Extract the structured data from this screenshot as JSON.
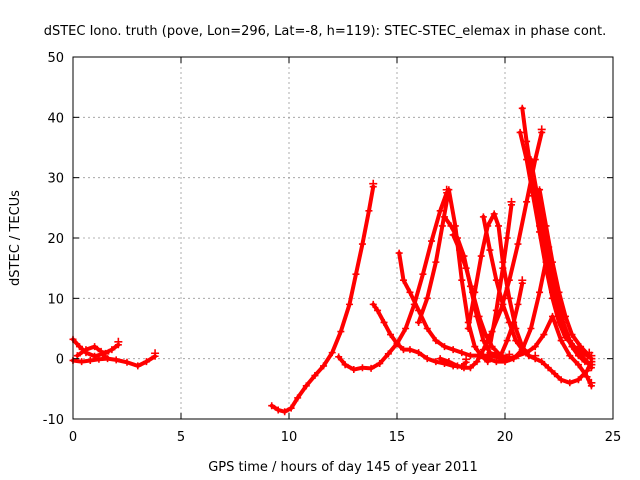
{
  "chart_data": {
    "type": "scatter",
    "title": "dSTEC Iono. truth (pove, Lon=296, Lat=-8, h=119): STEC-STEC_elemax in phase cont.",
    "xlabel": "GPS time / hours of day 145 of year 2011",
    "ylabel": "dSTEC  / TECUs",
    "xlim": [
      0,
      25
    ],
    "ylim": [
      -10,
      50
    ],
    "xticks": [
      0,
      5,
      10,
      15,
      20,
      25
    ],
    "yticks": [
      -10,
      0,
      10,
      20,
      30,
      40,
      50
    ],
    "grid": true,
    "marker": "plus",
    "color": "#ff0000",
    "series": [
      {
        "x": [
          0.0,
          0.3,
          0.6,
          1.0,
          1.4,
          1.8,
          2.1
        ],
        "y": [
          3.2,
          2.0,
          1.0,
          0.4,
          0.8,
          1.5,
          2.3
        ]
      },
      {
        "x": [
          0.0,
          0.4,
          0.8,
          1.2,
          1.6,
          2.0,
          2.5,
          3.0,
          3.4,
          3.8
        ],
        "y": [
          -0.3,
          -0.5,
          -0.3,
          -0.1,
          0.0,
          -0.2,
          -0.6,
          -1.2,
          -0.5,
          0.4
        ]
      },
      {
        "x": [
          0.2,
          0.6,
          1.0,
          1.3,
          1.5
        ],
        "y": [
          0.5,
          1.5,
          2.0,
          1.2,
          0.3
        ]
      },
      {
        "x": [
          9.2,
          9.5,
          9.8,
          10.1,
          10.4,
          10.8,
          11.2,
          11.6,
          12.0,
          12.4,
          12.8,
          13.1,
          13.4,
          13.7,
          13.9
        ],
        "y": [
          -7.8,
          -8.5,
          -8.8,
          -8.2,
          -6.5,
          -4.5,
          -2.8,
          -1.2,
          1.0,
          4.5,
          9.0,
          14.0,
          19.0,
          24.5,
          28.5
        ]
      },
      {
        "x": [
          12.3,
          12.6,
          13.0,
          13.4,
          13.8,
          14.2,
          14.6,
          15.0,
          15.4,
          15.8,
          16.2,
          16.6,
          17.0,
          17.3
        ],
        "y": [
          0.3,
          -1.0,
          -1.8,
          -1.5,
          -1.6,
          -0.8,
          0.8,
          2.5,
          5.0,
          9.0,
          14.0,
          19.5,
          24.5,
          27.5
        ]
      },
      {
        "x": [
          13.9,
          14.1,
          14.4,
          14.7,
          15.0,
          15.3,
          15.6,
          16.0,
          16.4,
          16.8,
          17.2,
          17.6,
          18.0,
          18.2
        ],
        "y": [
          9.0,
          8.0,
          6.0,
          4.0,
          2.5,
          1.5,
          1.5,
          1.0,
          0.0,
          -0.5,
          -0.8,
          -1.2,
          -1.3,
          -0.6
        ]
      },
      {
        "x": [
          15.1,
          15.3,
          15.6,
          16.0,
          16.4,
          16.8,
          17.2,
          17.6,
          18.0,
          18.4,
          18.8,
          19.2
        ],
        "y": [
          17.5,
          13.0,
          11.0,
          8.0,
          5.0,
          3.0,
          2.0,
          1.5,
          1.0,
          0.5,
          0.5,
          0.0
        ]
      },
      {
        "x": [
          16.0,
          16.4,
          16.8,
          17.1,
          17.4,
          17.7,
          18.0,
          18.3,
          18.6,
          18.9,
          19.2
        ],
        "y": [
          6.0,
          10.0,
          16.0,
          22.0,
          28.0,
          22.0,
          13.0,
          6.0,
          2.0,
          0.5,
          -0.5
        ]
      },
      {
        "x": [
          17.2,
          17.5,
          17.8,
          18.1,
          18.4,
          18.7,
          19.0,
          19.3,
          19.6
        ],
        "y": [
          23.5,
          22.0,
          20.0,
          17.0,
          12.0,
          7.0,
          3.0,
          1.0,
          0.5
        ]
      },
      {
        "x": [
          17.6,
          17.9,
          18.2,
          18.5,
          18.8,
          19.1,
          19.4,
          19.8,
          20.2
        ],
        "y": [
          20.5,
          18.0,
          15.0,
          11.0,
          7.0,
          4.0,
          2.0,
          0.5,
          0.2
        ]
      },
      {
        "x": [
          17.0,
          17.4,
          17.8,
          18.1,
          18.4,
          18.7,
          19.0,
          19.4,
          19.8,
          20.2,
          20.6,
          21.0,
          21.4,
          21.7
        ],
        "y": [
          0.0,
          -0.5,
          -1.2,
          -1.5,
          -1.5,
          -0.5,
          1.5,
          4.5,
          8.0,
          13.0,
          19.0,
          26.0,
          33.0,
          37.5
        ]
      },
      {
        "x": [
          19.0,
          19.3,
          19.6,
          19.9,
          20.2,
          20.5,
          20.8,
          21.1,
          21.4,
          21.7,
          22.0,
          22.3,
          22.6,
          23.0,
          23.4,
          23.8,
          24.0
        ],
        "y": [
          23.5,
          18.0,
          13.0,
          9.0,
          6.0,
          3.0,
          1.5,
          0.5,
          0.0,
          -0.5,
          -1.5,
          -2.5,
          -3.5,
          -4.0,
          -3.5,
          -2.0,
          -0.5
        ]
      },
      {
        "x": [
          18.3,
          18.6,
          18.9,
          19.2,
          19.5,
          19.7,
          19.9,
          20.2,
          20.5,
          20.8,
          21.1,
          21.4
        ],
        "y": [
          5.0,
          11.0,
          17.0,
          22.0,
          24.0,
          22.0,
          16.0,
          10.0,
          5.0,
          2.0,
          0.5,
          0.0
        ]
      },
      {
        "x": [
          18.8,
          19.2,
          19.6,
          20.0,
          20.4,
          20.8,
          21.2,
          21.6,
          22.0
        ],
        "y": [
          0.5,
          0.0,
          -0.5,
          -0.5,
          0.0,
          1.5,
          5.0,
          11.0,
          18.0
        ]
      },
      {
        "x": [
          19.0,
          19.4,
          19.8,
          20.2,
          20.6,
          21.0,
          21.4,
          21.8,
          22.2,
          22.6,
          23.0,
          23.4,
          23.8,
          24.0
        ],
        "y": [
          0.5,
          0.5,
          0.0,
          0.0,
          0.5,
          1.0,
          2.0,
          4.0,
          7.0,
          3.0,
          0.5,
          -1.0,
          -3.0,
          -4.5
        ]
      },
      {
        "x": [
          19.3,
          19.6,
          19.9,
          20.1,
          20.3
        ],
        "y": [
          2.0,
          8.0,
          15.0,
          20.0,
          25.5
        ]
      },
      {
        "x": [
          19.8,
          20.1,
          20.4,
          20.6,
          20.8
        ],
        "y": [
          0.5,
          3.0,
          6.0,
          9.0,
          12.5
        ]
      },
      {
        "x": [
          20.8,
          21.0,
          21.3,
          21.6,
          21.9,
          22.2,
          22.5,
          22.8,
          23.1,
          23.4,
          23.7,
          24.0
        ],
        "y": [
          41.5,
          36.0,
          29.0,
          22.0,
          16.0,
          11.0,
          7.0,
          4.0,
          2.0,
          0.5,
          -0.5,
          -1.0
        ]
      },
      {
        "x": [
          20.7,
          21.0,
          21.3,
          21.6,
          21.9,
          22.2,
          22.5,
          22.8,
          23.2,
          23.6,
          24.0
        ],
        "y": [
          37.5,
          33.0,
          27.0,
          21.0,
          15.0,
          10.0,
          6.0,
          3.5,
          2.0,
          1.0,
          0.0
        ]
      },
      {
        "x": [
          21.2,
          21.5,
          21.8,
          22.1,
          22.4,
          22.7,
          23.0,
          23.4,
          23.8,
          24.0
        ],
        "y": [
          33.0,
          27.0,
          21.0,
          15.0,
          10.0,
          6.0,
          3.0,
          1.0,
          -0.5,
          -1.5
        ]
      },
      {
        "x": [
          21.6,
          21.9,
          22.2,
          22.5,
          22.8,
          23.1,
          23.5,
          23.9
        ],
        "y": [
          28.0,
          22.0,
          16.0,
          11.0,
          7.0,
          4.0,
          2.0,
          0.5
        ]
      }
    ]
  }
}
